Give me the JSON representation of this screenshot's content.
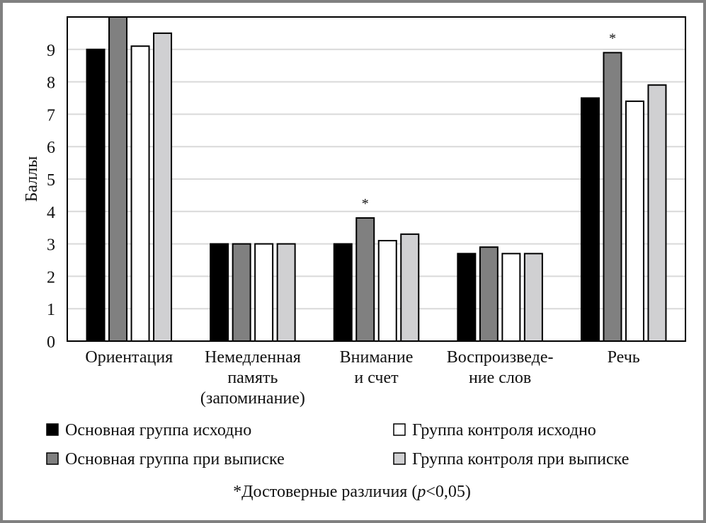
{
  "chart_data": {
    "type": "bar",
    "title": "",
    "xlabel": "",
    "ylabel": "Баллы",
    "ylim": [
      0,
      10
    ],
    "yticks": [
      0,
      1,
      2,
      3,
      4,
      5,
      6,
      7,
      8,
      9
    ],
    "grid": true,
    "categories": [
      [
        "Ориентация"
      ],
      [
        "Немедленная",
        "память",
        "(запоминание)"
      ],
      [
        "Внимание",
        "и счет"
      ],
      [
        "Воспроизведе-",
        "ние слов"
      ],
      [
        "Речь"
      ]
    ],
    "series": [
      {
        "name": "Основная группа исходно",
        "color": "#000000",
        "values": [
          9,
          3,
          3,
          2.7,
          7.5
        ]
      },
      {
        "name": "Основная группа при выписке",
        "color": "#808080",
        "values": [
          10,
          3,
          3.8,
          2.9,
          8.9
        ]
      },
      {
        "name": "Группа контроля исходно",
        "color": "#ffffff",
        "values": [
          9.1,
          3,
          3.1,
          2.7,
          7.4
        ]
      },
      {
        "name": "Группа контроля при выписке",
        "color": "#d0d0d2",
        "values": [
          9.5,
          3,
          3.3,
          2.7,
          7.9
        ]
      }
    ],
    "significance_marks": [
      {
        "category_index": 2,
        "series_index": 1,
        "label": "*"
      },
      {
        "category_index": 4,
        "series_index": 1,
        "label": "*"
      }
    ],
    "legend_placement": "bottom",
    "footnote": {
      "prefix": "*Достоверные различия (",
      "italic": "p",
      "suffix": "<0,05)"
    }
  }
}
